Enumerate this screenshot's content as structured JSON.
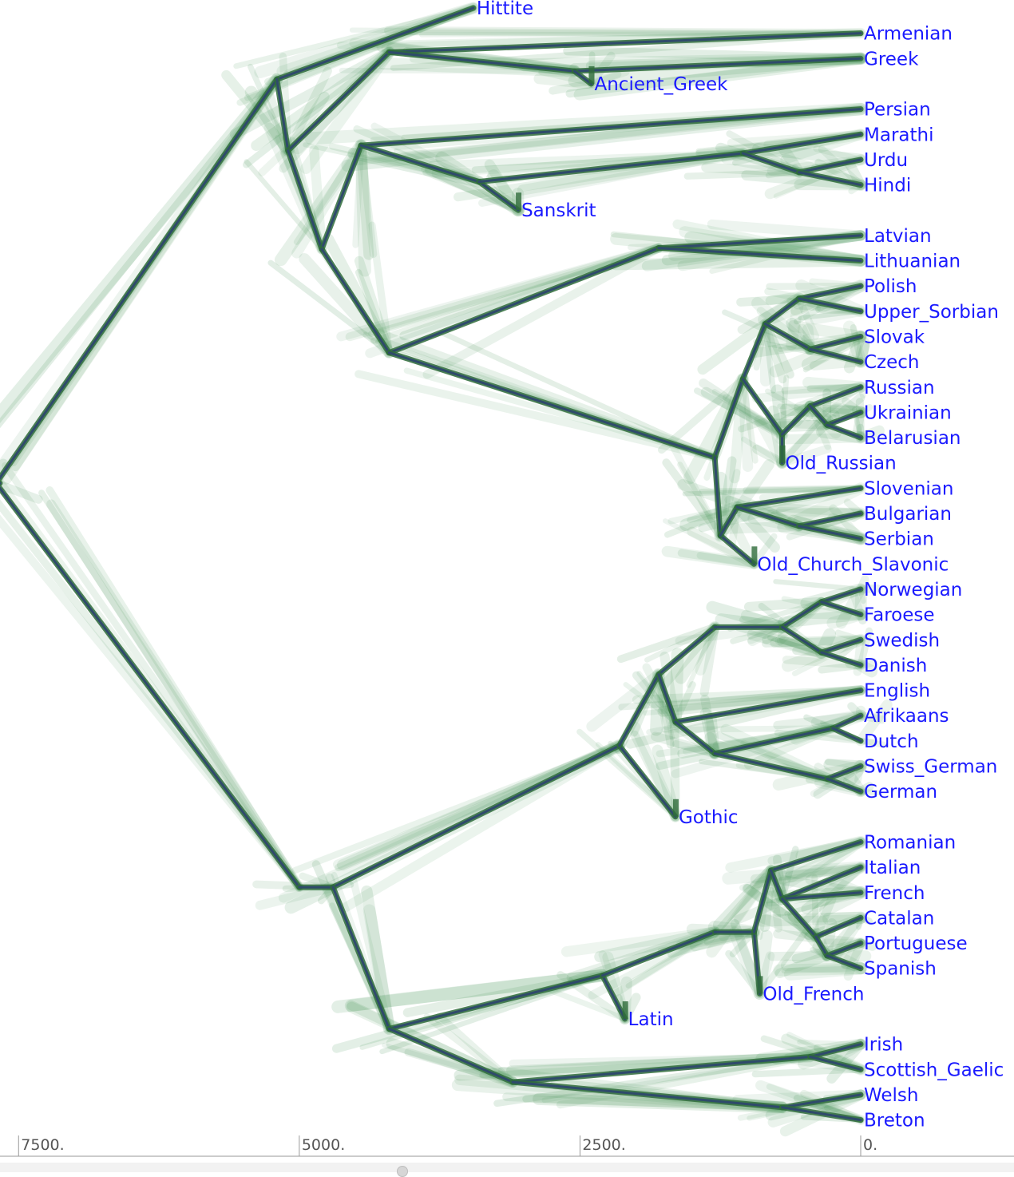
{
  "diagram": {
    "colors": {
      "consensus": "#2f4a6b",
      "cloud": "#3f8f50",
      "cloud_dark": "#2e6b3a",
      "label": "#1a1aff",
      "axis": "#9a9a9a"
    },
    "axis": {
      "ticks": [
        {
          "value": 7500,
          "label": "7500."
        },
        {
          "value": 5000,
          "label": "5000."
        },
        {
          "value": 2500,
          "label": "2500."
        },
        {
          "value": 0,
          "label": "0."
        }
      ]
    },
    "leaves": [
      {
        "name": "Hittite",
        "t": 3450
      },
      {
        "name": "Armenian",
        "t": 0
      },
      {
        "name": "Greek",
        "t": 0
      },
      {
        "name": "Ancient_Greek",
        "t": 2400
      },
      {
        "name": "Persian",
        "t": 0
      },
      {
        "name": "Marathi",
        "t": 0
      },
      {
        "name": "Urdu",
        "t": 0
      },
      {
        "name": "Hindi",
        "t": 0
      },
      {
        "name": "Sanskrit",
        "t": 3050
      },
      {
        "name": "Latvian",
        "t": 0
      },
      {
        "name": "Lithuanian",
        "t": 0
      },
      {
        "name": "Polish",
        "t": 0
      },
      {
        "name": "Upper_Sorbian",
        "t": 0
      },
      {
        "name": "Slovak",
        "t": 0
      },
      {
        "name": "Czech",
        "t": 0
      },
      {
        "name": "Russian",
        "t": 0
      },
      {
        "name": "Ukrainian",
        "t": 0
      },
      {
        "name": "Belarusian",
        "t": 0
      },
      {
        "name": "Old_Russian",
        "t": 700
      },
      {
        "name": "Slovenian",
        "t": 0
      },
      {
        "name": "Bulgarian",
        "t": 0
      },
      {
        "name": "Serbian",
        "t": 0
      },
      {
        "name": "Old_Church_Slavonic",
        "t": 950
      },
      {
        "name": "Norwegian",
        "t": 0
      },
      {
        "name": "Faroese",
        "t": 0
      },
      {
        "name": "Swedish",
        "t": 0
      },
      {
        "name": "Danish",
        "t": 0
      },
      {
        "name": "English",
        "t": 0
      },
      {
        "name": "Afrikaans",
        "t": 0
      },
      {
        "name": "Dutch",
        "t": 0
      },
      {
        "name": "Swiss_German",
        "t": 0
      },
      {
        "name": "German",
        "t": 0
      },
      {
        "name": "Gothic",
        "t": 1650
      },
      {
        "name": "Romanian",
        "t": 0
      },
      {
        "name": "Italian",
        "t": 0
      },
      {
        "name": "French",
        "t": 0
      },
      {
        "name": "Catalan",
        "t": 0
      },
      {
        "name": "Portuguese",
        "t": 0
      },
      {
        "name": "Spanish",
        "t": 0
      },
      {
        "name": "Old_French",
        "t": 900
      },
      {
        "name": "Latin",
        "t": 2100
      },
      {
        "name": "Irish",
        "t": 0
      },
      {
        "name": "Scottish_Gaelic",
        "t": 0
      },
      {
        "name": "Welsh",
        "t": 0
      },
      {
        "name": "Breton",
        "t": 0
      }
    ],
    "clades": [
      {
        "t": 7700,
        "children": [
          {
            "t": 5200,
            "children": [
              {
                "leaf": "Hittite"
              },
              {
                "t": 5100,
                "children": [
                  {
                    "t": 4200,
                    "children": [
                      {
                        "leaf": "Armenian"
                      },
                      {
                        "t": 2550,
                        "children": [
                          {
                            "leaf": "Greek"
                          },
                          {
                            "leaf": "Ancient_Greek"
                          }
                        ]
                      }
                    ]
                  },
                  {
                    "t": 4800,
                    "children": [
                      {
                        "t": 4450,
                        "children": [
                          {
                            "leaf": "Persian"
                          },
                          {
                            "t": 3400,
                            "children": [
                              {
                                "leaf": "Sanskrit"
                              },
                              {
                                "t": 1050,
                                "children": [
                                  {
                                    "leaf": "Marathi"
                                  },
                                  {
                                    "t": 550,
                                    "children": [
                                      {
                                        "leaf": "Urdu"
                                      },
                                      {
                                        "leaf": "Hindi"
                                      }
                                    ]
                                  }
                                ]
                              }
                            ]
                          }
                        ]
                      },
                      {
                        "t": 4200,
                        "children": [
                          {
                            "t": 1800,
                            "children": [
                              {
                                "leaf": "Latvian"
                              },
                              {
                                "leaf": "Lithuanian"
                              }
                            ]
                          },
                          {
                            "t": 1300,
                            "children": [
                              {
                                "t": 1050,
                                "children": [
                                  {
                                    "t": 850,
                                    "children": [
                                      {
                                        "t": 550,
                                        "children": [
                                          {
                                            "leaf": "Polish"
                                          },
                                          {
                                            "leaf": "Upper_Sorbian"
                                          }
                                        ]
                                      },
                                      {
                                        "t": 450,
                                        "children": [
                                          {
                                            "leaf": "Slovak"
                                          },
                                          {
                                            "leaf": "Czech"
                                          }
                                        ]
                                      }
                                    ]
                                  },
                                  {
                                    "t": 700,
                                    "children": [
                                      {
                                        "leaf": "Old_Russian"
                                      },
                                      {
                                        "t": 450,
                                        "children": [
                                          {
                                            "leaf": "Russian"
                                          },
                                          {
                                            "t": 300,
                                            "children": [
                                              {
                                                "leaf": "Ukrainian"
                                              },
                                              {
                                                "leaf": "Belarusian"
                                              }
                                            ]
                                          }
                                        ]
                                      }
                                    ]
                                  }
                                ]
                              },
                              {
                                "t": 1250,
                                "children": [
                                  {
                                    "leaf": "Old_Church_Slavonic"
                                  },
                                  {
                                    "t": 1100,
                                    "children": [
                                      {
                                        "leaf": "Slovenian"
                                      },
                                      {
                                        "t": 550,
                                        "children": [
                                          {
                                            "leaf": "Bulgarian"
                                          },
                                          {
                                            "leaf": "Serbian"
                                          }
                                        ]
                                      }
                                    ]
                                  }
                                ]
                              }
                            ]
                          }
                        ]
                      }
                    ]
                  }
                ]
              }
            ]
          },
          {
            "t": 5000,
            "children": [
              {
                "t": 4700,
                "children": [
                  {
                    "t": 2150,
                    "children": [
                      {
                        "leaf": "Gothic"
                      },
                      {
                        "t": 1800,
                        "children": [
                          {
                            "t": 1300,
                            "children": [
                              {
                                "t": 700,
                                "children": [
                                  {
                                    "t": 350,
                                    "children": [
                                      {
                                        "leaf": "Norwegian"
                                      },
                                      {
                                        "leaf": "Faroese"
                                      }
                                    ]
                                  },
                                  {
                                    "t": 350,
                                    "children": [
                                      {
                                        "leaf": "Swedish"
                                      },
                                      {
                                        "leaf": "Danish"
                                      }
                                    ]
                                  }
                                ]
                              }
                            ]
                          },
                          {
                            "t": 1650,
                            "children": [
                              {
                                "leaf": "English"
                              },
                              {
                                "t": 1300,
                                "children": [
                                  {
                                    "t": 250,
                                    "children": [
                                      {
                                        "leaf": "Afrikaans"
                                      },
                                      {
                                        "leaf": "Dutch"
                                      }
                                    ]
                                  },
                                  {
                                    "t": 300,
                                    "children": [
                                      {
                                        "leaf": "Swiss_German"
                                      },
                                      {
                                        "leaf": "German"
                                      }
                                    ]
                                  }
                                ]
                              }
                            ]
                          }
                        ]
                      }
                    ]
                  },
                  {
                    "t": 4200,
                    "children": [
                      {
                        "t": 2300,
                        "children": [
                          {
                            "leaf": "Latin"
                          },
                          {
                            "t": 1300,
                            "children": [
                              {
                                "t": 950,
                                "children": [
                                  {
                                    "leaf": "Old_French"
                                  },
                                  {
                                    "t": 800,
                                    "children": [
                                      {
                                        "leaf": "Romanian"
                                      },
                                      {
                                        "t": 700,
                                        "children": [
                                          {
                                            "leaf": "Italian"
                                          },
                                          {
                                            "leaf": "French"
                                          },
                                          {
                                            "t": 400,
                                            "children": [
                                              {
                                                "leaf": "Catalan"
                                              },
                                              {
                                                "t": 300,
                                                "children": [
                                                  {
                                                    "leaf": "Portuguese"
                                                  },
                                                  {
                                                    "leaf": "Spanish"
                                                  }
                                                ]
                                              }
                                            ]
                                          }
                                        ]
                                      }
                                    ]
                                  }
                                ]
                              }
                            ]
                          }
                        ]
                      },
                      {
                        "t": 3100,
                        "children": [
                          {
                            "t": 450,
                            "children": [
                              {
                                "leaf": "Irish"
                              },
                              {
                                "leaf": "Scottish_Gaelic"
                              }
                            ]
                          },
                          {
                            "t": 700,
                            "children": [
                              {
                                "leaf": "Welsh"
                              },
                              {
                                "leaf": "Breton"
                              }
                            ]
                          }
                        ]
                      }
                    ]
                  }
                ]
              }
            ]
          }
        ]
      }
    ]
  }
}
